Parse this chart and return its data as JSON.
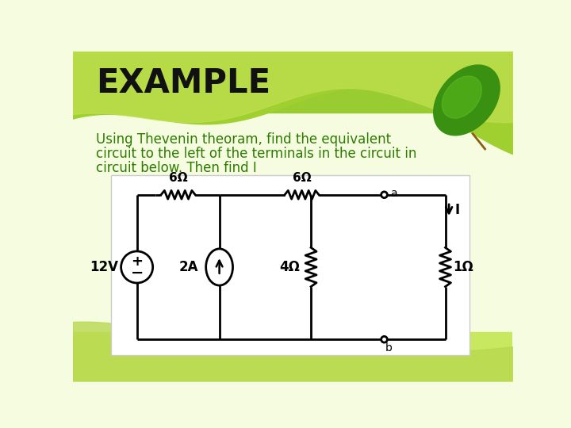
{
  "title": "EXAMPLE",
  "subtitle_line1": "Using Thevenin theoram, find the equivalent",
  "subtitle_line2": "circuit to the left of the terminals in the circuit in",
  "subtitle_line3": "circuit below. Then find I",
  "title_color": "#111111",
  "subtitle_color": "#2d7a00",
  "resistor_6_1_label": "6Ω",
  "resistor_6_2_label": "6Ω",
  "resistor_4_label": "4Ω",
  "resistor_1_label": "1Ω",
  "voltage_label": "12V",
  "current_label": "2A",
  "terminal_a": "a",
  "terminal_b": "b",
  "current_arrow_label": "I",
  "bg_light": "#f5fce0",
  "bg_green_top": "#8cc820",
  "bg_green_mid": "#b0d840",
  "bg_yellow_bot": "#ddf080",
  "circuit_box_color": "#ffffff",
  "wire_color": "#000000",
  "lw": 2.0
}
